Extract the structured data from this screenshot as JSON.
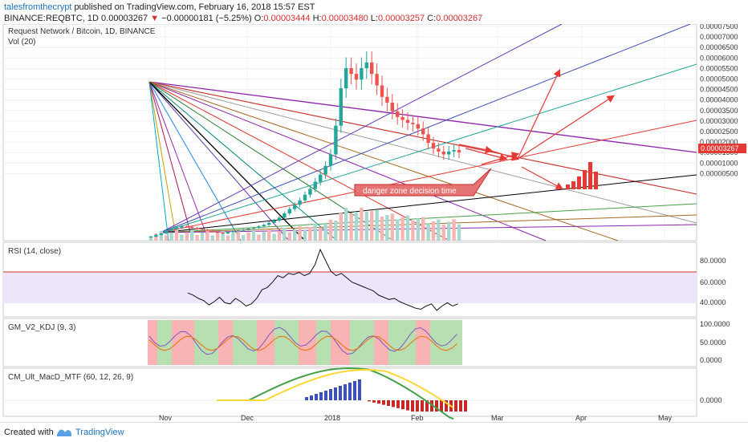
{
  "header": {
    "author": "talesfromthecrypt",
    "published": "published on TradingView.com, February 16, 2018 15:57 EST",
    "symbol": "BINANCE:REQBTC, 1D",
    "price": "0.00003267",
    "change": "−0.00000181 (−5.25%)",
    "open_label": "O:",
    "open": "0.00003444",
    "high_label": "H:",
    "high": "0.00003480",
    "low_label": "L:",
    "low": "0.00003257",
    "close_label": "C:",
    "close": "0.00003267"
  },
  "footer": {
    "created_with": "Created with",
    "brand": "TradingView"
  },
  "colors": {
    "up": "#26a69a",
    "down": "#ef5350",
    "annotation": "#e53935",
    "rsi_band": "#f0e6ff",
    "rsi_line": "#d32f2f"
  },
  "chart_data": {
    "type": "candlestick",
    "title": "Request Network / Bitcoin, 1D, BINANCE",
    "volume_label": "Vol (20)",
    "x_ticks": [
      "Nov",
      "Dec",
      "2018",
      "Feb",
      "Mar",
      "Apr",
      "May"
    ],
    "price_axis": [
      "0.00007500",
      "0.00007000",
      "0.00006500",
      "0.00006000",
      "0.00005500",
      "0.00005000",
      "0.00004500",
      "0.00004000",
      "0.00003500",
      "0.00003000",
      "0.00002500",
      "0.00002000",
      "0.00001500",
      "0.00001000",
      "0.00000500"
    ],
    "last_price": "0.00003267",
    "ylim": [
      2e-06,
      7.65e-05
    ],
    "close_series": [
      3.4e-06,
      4e-06,
      4.5e-06,
      5.5e-06,
      6e-06,
      6.5e-06,
      7e-06,
      6.8e-06,
      6.4e-06,
      6e-06,
      5.8e-06,
      5.5e-06,
      5e-06,
      4.8e-06,
      4.5e-06,
      5e-06,
      5.3e-06,
      5.5e-06,
      5.8e-06,
      6.2e-06,
      6.5e-06,
      7e-06,
      7.5e-06,
      8.2e-06,
      9e-06,
      1e-05,
      1.15e-05,
      1.3e-05,
      1.45e-05,
      1.6e-05,
      1.8e-05,
      2e-05,
      2.25e-05,
      2.5e-05,
      2.8e-05,
      3.2e-05,
      4.2e-05,
      5.5e-05,
      6.2e-05,
      6e-05,
      5.8e-05,
      6.2e-05,
      6.4e-05,
      6e-05,
      5.6e-05,
      5.2e-05,
      5e-05,
      4.7e-05,
      4.5e-05,
      4.4e-05,
      4.3e-05,
      4.25e-05,
      4.1e-05,
      3.9e-05,
      3.6e-05,
      3.4e-05,
      3.3e-05,
      3.2e-05,
      3.3e-05,
      3.35e-05,
      3.27e-05
    ],
    "annotation": "danger zone decision time",
    "rsi": {
      "label": "RSI (14, close)",
      "axis": [
        "80.0000",
        "60.0000",
        "40.0000"
      ],
      "upper": 70,
      "lower": 30,
      "ylim": [
        30,
        95
      ],
      "values": [
        52,
        50,
        47,
        45,
        41,
        44,
        48,
        43,
        42,
        47,
        44,
        40,
        42,
        47,
        55,
        57,
        62,
        68,
        66,
        70,
        69,
        71,
        68,
        70,
        78,
        92,
        82,
        72,
        68,
        70,
        66,
        62,
        60,
        58,
        56,
        54,
        50,
        48,
        46,
        47,
        44,
        42,
        40,
        38,
        37,
        40,
        42,
        36,
        40,
        43,
        40,
        42
      ]
    },
    "kdj": {
      "label": "GM_V2_KDJ (9, 3)",
      "axis": [
        "100.0000",
        "50.0000",
        "0.0000"
      ]
    },
    "macd": {
      "label": "CM_Ult_MacD_MTF (60, 12, 26, 9)",
      "axis": [
        "0.0000"
      ]
    }
  }
}
